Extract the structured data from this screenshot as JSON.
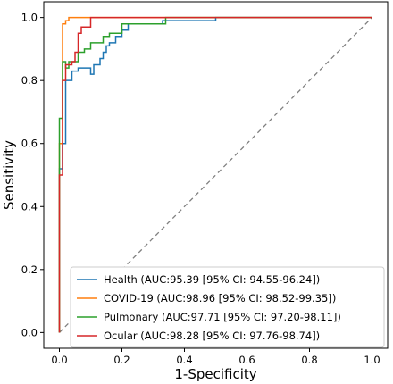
{
  "chart_data": {
    "type": "line",
    "title": "",
    "xlabel": "1-Specificity",
    "ylabel": "Sensitivity",
    "xlim": [
      -0.05,
      1.05
    ],
    "ylim": [
      -0.05,
      1.05
    ],
    "xticks": [
      0.0,
      0.2,
      0.4,
      0.6,
      0.8,
      1.0
    ],
    "yticks": [
      0.0,
      0.2,
      0.4,
      0.6,
      0.8,
      1.0
    ],
    "xtick_labels": [
      "0.0",
      "0.2",
      "0.4",
      "0.6",
      "0.8",
      "1.0"
    ],
    "ytick_labels": [
      "0.0",
      "0.2",
      "0.4",
      "0.6",
      "0.8",
      "1.0"
    ],
    "grid": false,
    "legend_position": "lower right",
    "reference_line": {
      "style": "dashed",
      "color": "#808080",
      "x": [
        0,
        1
      ],
      "y": [
        0,
        1
      ]
    },
    "series": [
      {
        "name": "Health (AUC:95.39 [95% CI: 94.55-96.24])",
        "color": "#1f77b4",
        "x": [
          0,
          0,
          0.01,
          0.01,
          0.02,
          0.02,
          0.04,
          0.04,
          0.06,
          0.06,
          0.1,
          0.1,
          0.11,
          0.11,
          0.13,
          0.13,
          0.14,
          0.14,
          0.15,
          0.15,
          0.16,
          0.16,
          0.18,
          0.18,
          0.2,
          0.2,
          0.22,
          0.22,
          0.25,
          0.25,
          0.33,
          0.33,
          0.5,
          0.5,
          1.0
        ],
        "y": [
          0,
          0.52,
          0.52,
          0.6,
          0.6,
          0.8,
          0.8,
          0.83,
          0.83,
          0.84,
          0.84,
          0.82,
          0.82,
          0.85,
          0.85,
          0.87,
          0.87,
          0.89,
          0.89,
          0.91,
          0.91,
          0.92,
          0.92,
          0.94,
          0.94,
          0.96,
          0.96,
          0.98,
          0.98,
          0.98,
          0.98,
          0.99,
          0.99,
          1.0,
          1.0
        ]
      },
      {
        "name": "COVID-19 (AUC:98.96 [95% CI: 98.52-99.35])",
        "color": "#ff7f0e",
        "x": [
          0,
          0,
          0.01,
          0.01,
          0.02,
          0.02,
          0.03,
          0.03,
          1.0
        ],
        "y": [
          0,
          0.6,
          0.6,
          0.98,
          0.98,
          0.99,
          0.99,
          1.0,
          1.0
        ]
      },
      {
        "name": "Pulmonary (AUC:97.71 [95% CI: 97.20-98.11])",
        "color": "#2ca02c",
        "x": [
          0,
          0,
          0.01,
          0.01,
          0.02,
          0.02,
          0.03,
          0.03,
          0.06,
          0.06,
          0.08,
          0.08,
          0.1,
          0.1,
          0.14,
          0.14,
          0.16,
          0.16,
          0.2,
          0.2,
          0.34,
          0.34,
          1.0
        ],
        "y": [
          0,
          0.68,
          0.68,
          0.86,
          0.86,
          0.84,
          0.84,
          0.86,
          0.86,
          0.89,
          0.89,
          0.9,
          0.9,
          0.92,
          0.92,
          0.94,
          0.94,
          0.95,
          0.95,
          0.98,
          0.98,
          1.0,
          1.0
        ]
      },
      {
        "name": "Ocular (AUC:98.28 [95% CI: 97.76-98.74])",
        "color": "#d62728",
        "x": [
          0,
          0,
          0.01,
          0.01,
          0.02,
          0.02,
          0.04,
          0.04,
          0.05,
          0.05,
          0.06,
          0.06,
          0.07,
          0.07,
          0.1,
          0.1,
          1.0
        ],
        "y": [
          0,
          0.5,
          0.5,
          0.8,
          0.8,
          0.85,
          0.85,
          0.86,
          0.86,
          0.89,
          0.89,
          0.95,
          0.95,
          0.97,
          0.97,
          1.0,
          1.0
        ]
      }
    ]
  }
}
